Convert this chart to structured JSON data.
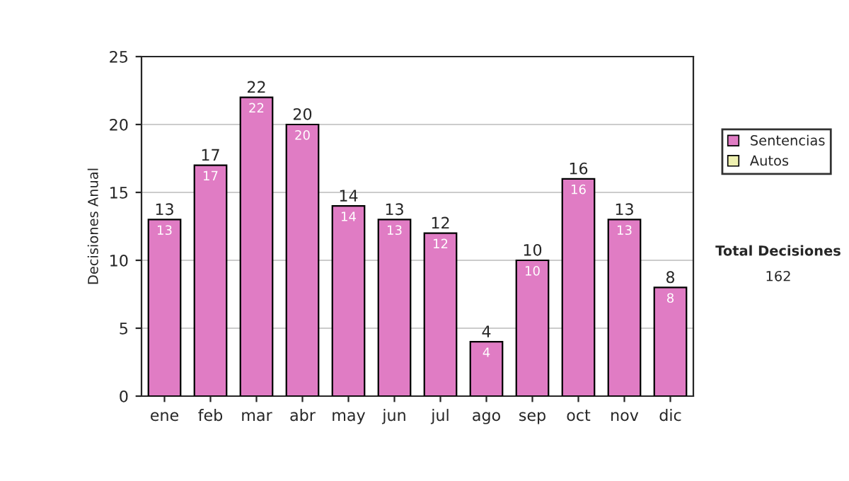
{
  "chart_data": {
    "type": "bar",
    "stacked": true,
    "ylabel": "Decisiones Anual",
    "categories": [
      "ene",
      "feb",
      "mar",
      "abr",
      "may",
      "jun",
      "jul",
      "ago",
      "sep",
      "oct",
      "nov",
      "dic"
    ],
    "series": [
      {
        "name": "Sentencias",
        "color": "#e07cc4",
        "values": [
          13,
          17,
          22,
          20,
          14,
          13,
          12,
          4,
          10,
          16,
          13,
          8
        ],
        "value_labels": [
          "13",
          "17",
          "22",
          "20",
          "14",
          "13",
          "12",
          "4",
          "10",
          "16",
          "13",
          "8"
        ]
      },
      {
        "name": "Autos",
        "color": "#eef0b0",
        "values": [
          0,
          0,
          0,
          0,
          0,
          0,
          0,
          0,
          0,
          0,
          0,
          0
        ]
      }
    ],
    "totals": [
      "13",
      "17",
      "22",
      "20",
      "14",
      "13",
      "12",
      "4",
      "10",
      "16",
      "13",
      "8"
    ],
    "ylim": [
      0,
      25
    ],
    "yticks": [
      0,
      5,
      10,
      15,
      20,
      25
    ],
    "grid": "y",
    "legend": "right",
    "annotations": [
      "Total Decisiones",
      "162"
    ]
  }
}
